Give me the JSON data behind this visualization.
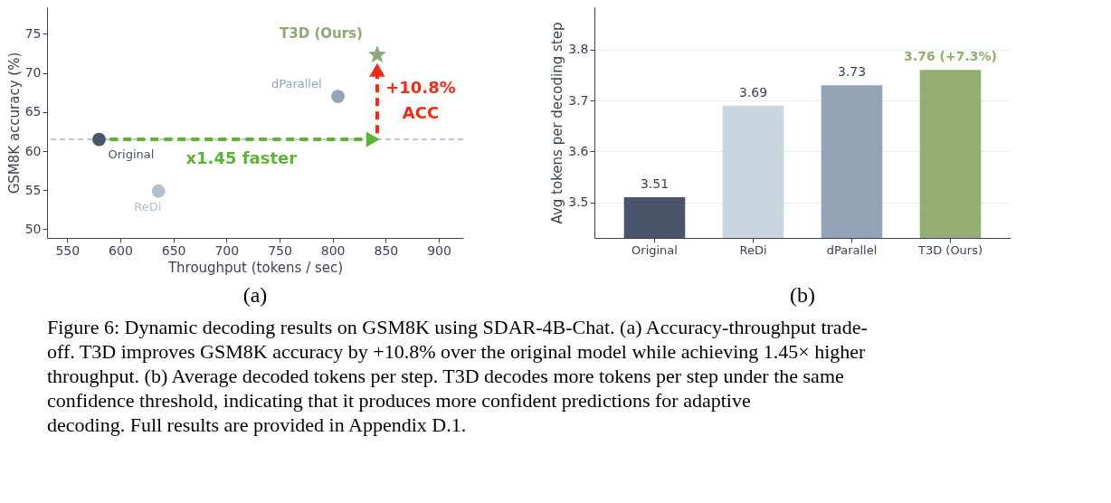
{
  "chart_data": [
    {
      "type": "scatter",
      "xlabel": "Throughput (tokens / sec)",
      "ylabel": "GSM8K accuracy (%)",
      "xlim": [
        531,
        923
      ],
      "ylim": [
        48.9,
        78.4
      ],
      "xticks": [
        550,
        600,
        650,
        700,
        750,
        800,
        850,
        900
      ],
      "yticks": [
        50,
        55,
        60,
        65,
        70,
        75
      ],
      "grid": false,
      "series": [
        {
          "type": "line",
          "line_style": "dashed",
          "marker": "triangle",
          "color": "#5cb335",
          "x": [
            590,
            838
          ],
          "values": [
            61.5,
            61.5
          ]
        },
        {
          "type": "line",
          "line_style": "dashed",
          "marker": "triangle",
          "color": "#ee2a1a",
          "x": [
            842,
            842
          ],
          "values": [
            62.3,
            70.4
          ]
        },
        {
          "name": "Original",
          "marker": "circle",
          "color": "#475569",
          "x": [
            580
          ],
          "values": [
            61.5
          ]
        },
        {
          "name": "ReDi",
          "marker": "circle",
          "color": "#b4c0cf",
          "x": [
            636
          ],
          "values": [
            54.9
          ]
        },
        {
          "name": "dParallel",
          "marker": "circle",
          "color": "#94a3b8",
          "x": [
            805
          ],
          "values": [
            67.0
          ]
        },
        {
          "name": "T3D (Ours)",
          "marker": "star",
          "color": "#8fa878",
          "x": [
            842
          ],
          "values": [
            72.3
          ]
        }
      ],
      "ref_lines": [
        {
          "axis": "y",
          "value": 61.5,
          "color": "#8a8f99",
          "line_style": "dashed"
        }
      ],
      "annotations": [
        "(a)",
        "x1.45 faster",
        "+10.8%",
        "ACC"
      ]
    },
    {
      "type": "bar",
      "ylabel": "Avg tokens per decoding step",
      "categories": [
        "Original",
        "ReDi",
        "dParallel",
        "T3D (Ours)"
      ],
      "values": [
        3.51,
        3.69,
        3.73,
        3.76
      ],
      "colors": [
        "#4a556b",
        "#cbd5e0",
        "#94a3b8",
        "#94ad73"
      ],
      "value_labels": [
        "3.51",
        "3.69",
        "3.73",
        "3.76  (+7.3%)"
      ],
      "ylim": [
        3.43,
        3.883
      ],
      "yticks": [
        3.5,
        3.6,
        3.7,
        3.8
      ],
      "grid": "y",
      "annotations": [
        "(b)",
        "Figure 6: Dynamic decoding results on GSM8K using SDAR-4B-Chat. (a) Accuracy-throughput trade-off. T3D improves GSM8K accuracy by +10.8% over the original model while achieving 1.45× higher throughput. (b) Average decoded tokens per step. T3D decodes more tokens per step under the same confidence threshold, indicating that it produces more confident predictions for adaptive decoding. Full results are provided in Appendix D.1."
      ]
    }
  ]
}
